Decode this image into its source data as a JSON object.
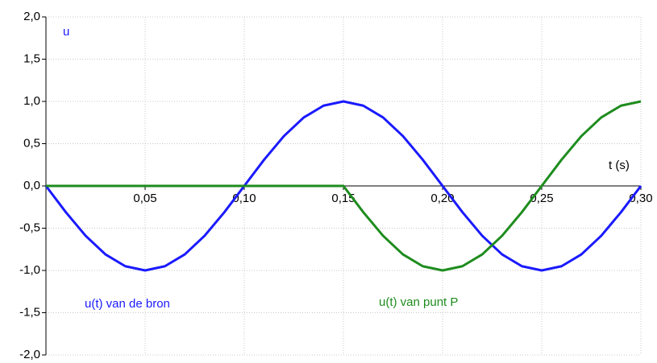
{
  "chart_data": {
    "type": "line",
    "ylabel": "u",
    "xlabel": "t (s)",
    "x": [
      0,
      0.01,
      0.02,
      0.03,
      0.04,
      0.05,
      0.06,
      0.07,
      0.08,
      0.09,
      0.1,
      0.11,
      0.12,
      0.13,
      0.14,
      0.15,
      0.16,
      0.17,
      0.18,
      0.19,
      0.2,
      0.21,
      0.22,
      0.23,
      0.24,
      0.25,
      0.26,
      0.27,
      0.28,
      0.29,
      0.3
    ],
    "series": [
      {
        "name": "u(t) van de bron",
        "color": "#1a1aff",
        "values": [
          0,
          -0.31,
          -0.59,
          -0.81,
          -0.95,
          -1,
          -0.95,
          -0.81,
          -0.59,
          -0.31,
          0,
          0.31,
          0.59,
          0.81,
          0.95,
          1,
          0.95,
          0.81,
          0.59,
          0.31,
          0,
          -0.31,
          -0.59,
          -0.81,
          -0.95,
          -1,
          -0.95,
          -0.81,
          -0.59,
          -0.31,
          0
        ]
      },
      {
        "name": "u(t) van punt P",
        "color": "#1e8c1e",
        "values": [
          0,
          0,
          0,
          0,
          0,
          0,
          0,
          0,
          0,
          0,
          0,
          0,
          0,
          0,
          0,
          0,
          -0.31,
          -0.59,
          -0.81,
          -0.95,
          -1,
          -0.95,
          -0.81,
          -0.59,
          -0.31,
          0,
          0.31,
          0.59,
          0.81,
          0.95,
          1
        ]
      }
    ],
    "xlim": [
      0,
      0.3
    ],
    "ylim": [
      -2,
      2
    ],
    "xticks": [
      {
        "value": 0.05,
        "label": "0,05"
      },
      {
        "value": 0.1,
        "label": "0,10"
      },
      {
        "value": 0.15,
        "label": "0,15"
      },
      {
        "value": 0.2,
        "label": "0,20"
      },
      {
        "value": 0.25,
        "label": "0,25"
      },
      {
        "value": 0.3,
        "label": "0,30"
      }
    ],
    "yticks": [
      {
        "value": -2,
        "label": "-2,0"
      },
      {
        "value": -1.5,
        "label": "-1,5"
      },
      {
        "value": -1,
        "label": "-1,0"
      },
      {
        "value": -0.5,
        "label": "-0,5"
      },
      {
        "value": 0,
        "label": "0,0"
      },
      {
        "value": 0.5,
        "label": "0,5"
      },
      {
        "value": 1,
        "label": "1,0"
      },
      {
        "value": 1.5,
        "label": "1,5"
      },
      {
        "value": 2,
        "label": "2,0"
      }
    ],
    "grid": true
  }
}
